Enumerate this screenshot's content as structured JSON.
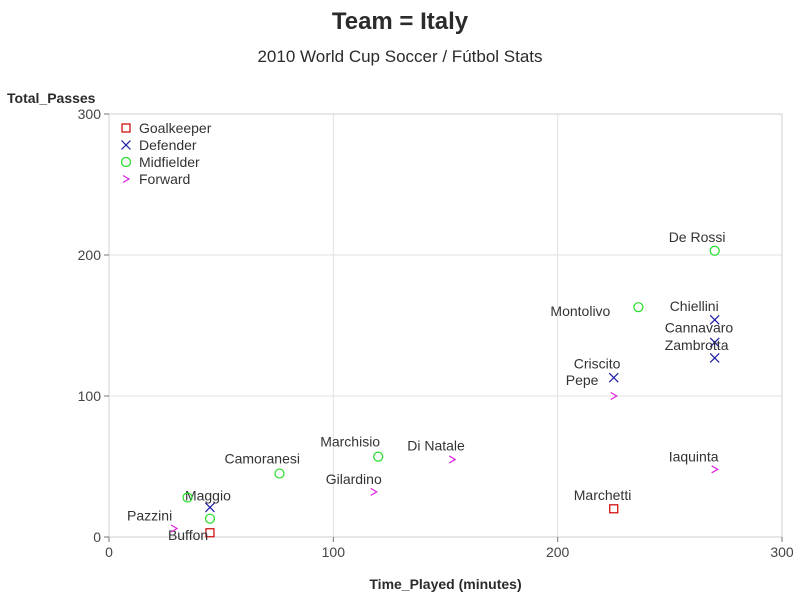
{
  "chart_data": {
    "type": "scatter",
    "title": "Team = Italy",
    "subtitle": "2010 World Cup Soccer / Fútbol Stats",
    "xlabel": "Time_Played (minutes)",
    "ylabel": "Total_Passes",
    "xlim": [
      0,
      300
    ],
    "ylim": [
      0,
      300
    ],
    "xticks": [
      0,
      100,
      200,
      300
    ],
    "yticks": [
      0,
      100,
      200,
      300
    ],
    "grid": true,
    "legend_position": "top-left",
    "groups": [
      {
        "name": "Goalkeeper",
        "marker": "square",
        "color": "#cc0000"
      },
      {
        "name": "Defender",
        "marker": "x",
        "color": "#1a1aa6"
      },
      {
        "name": "Midfielder",
        "marker": "circle",
        "color": "#22dd22"
      },
      {
        "name": "Forward",
        "marker": "chevron",
        "color": "#dd22dd"
      }
    ],
    "points": [
      {
        "label": "Buffon",
        "x": 45,
        "y": 3,
        "group": "Goalkeeper"
      },
      {
        "label": "Marchetti",
        "x": 225,
        "y": 20,
        "group": "Goalkeeper"
      },
      {
        "label": "Maggio",
        "x": 45,
        "y": 21,
        "group": "Defender"
      },
      {
        "label": "Criscito",
        "x": 225,
        "y": 113,
        "group": "Defender"
      },
      {
        "label": "Chiellini",
        "x": 270,
        "y": 154,
        "group": "Defender"
      },
      {
        "label": "Cannavaro",
        "x": 270,
        "y": 138,
        "group": "Defender"
      },
      {
        "label": "Zambrotta",
        "x": 270,
        "y": 127,
        "group": "Defender"
      },
      {
        "label": "",
        "x": 35,
        "y": 28,
        "group": "Midfielder"
      },
      {
        "label": "",
        "x": 45,
        "y": 13,
        "group": "Midfielder"
      },
      {
        "label": "Camoranesi",
        "x": 76,
        "y": 45,
        "group": "Midfielder"
      },
      {
        "label": "Marchisio",
        "x": 120,
        "y": 57,
        "group": "Midfielder"
      },
      {
        "label": "Montolivo",
        "x": 236,
        "y": 163,
        "group": "Midfielder"
      },
      {
        "label": "De Rossi",
        "x": 270,
        "y": 203,
        "group": "Midfielder"
      },
      {
        "label": "Pazzini",
        "x": 29,
        "y": 6,
        "group": "Forward"
      },
      {
        "label": "Gilardino",
        "x": 118,
        "y": 32,
        "group": "Forward"
      },
      {
        "label": "Di Natale",
        "x": 153,
        "y": 55,
        "group": "Forward"
      },
      {
        "label": "Pepe",
        "x": 225,
        "y": 100,
        "group": "Forward"
      },
      {
        "label": "Iaquinta",
        "x": 270,
        "y": 48,
        "group": "Forward"
      }
    ]
  }
}
